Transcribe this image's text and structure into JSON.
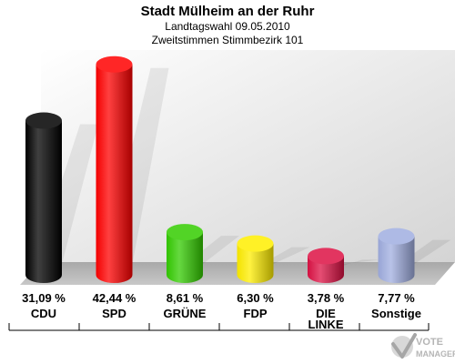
{
  "header": {
    "title": "Stadt Mülheim an der Ruhr",
    "subtitle1": "Landtagswahl 09.05.2010",
    "subtitle2": "Zweitstimmen Stimmbezirk 101"
  },
  "logo": {
    "line1": "VOTE",
    "line2": "MANAGER"
  },
  "chart_data": {
    "type": "bar",
    "title": "Stadt Mülheim an der Ruhr",
    "subtitle": "Landtagswahl 09.05.2010 / Zweitstimmen Stimmbezirk 101",
    "xlabel": "",
    "ylabel": "",
    "ylim": [
      0,
      45
    ],
    "grid": false,
    "categories": [
      "CDU",
      "SPD",
      "GRÜNE",
      "FDP",
      "DIE LINKE",
      "Sonstige"
    ],
    "category_lines": [
      [
        "CDU"
      ],
      [
        "SPD"
      ],
      [
        "GRÜNE"
      ],
      [
        "FDP"
      ],
      [
        "DIE",
        "LINKE"
      ],
      [
        "Sonstige"
      ]
    ],
    "values": [
      31.09,
      42.44,
      8.61,
      6.3,
      3.78,
      7.77
    ],
    "value_labels": [
      "31,09 %",
      "42,44 %",
      "8,61 %",
      "6,30 %",
      "3,78 %",
      "7,77 %"
    ],
    "colors": [
      "#000000",
      "#ff0000",
      "#33cc00",
      "#ffee00",
      "#dd1144",
      "#a0aee0"
    ]
  }
}
